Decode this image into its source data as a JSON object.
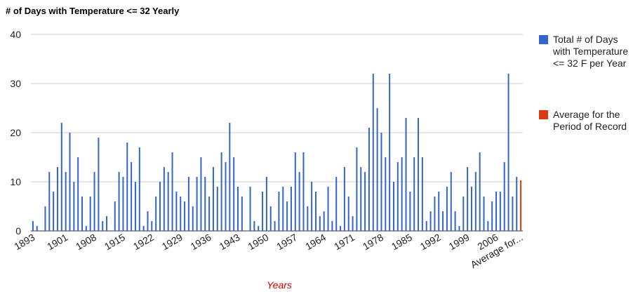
{
  "chart_data": {
    "type": "bar",
    "title": "# of Days with Temperature <= 32 Yearly",
    "x_label": "Years",
    "categories": [
      "1893",
      null,
      null,
      null,
      null,
      null,
      null,
      null,
      "1901",
      null,
      null,
      null,
      null,
      null,
      null,
      "1908",
      null,
      null,
      null,
      null,
      null,
      null,
      "1915",
      null,
      null,
      null,
      null,
      null,
      null,
      "1922",
      null,
      null,
      null,
      null,
      null,
      null,
      "1929",
      null,
      null,
      null,
      null,
      null,
      null,
      "1936",
      null,
      null,
      null,
      null,
      null,
      null,
      "1943",
      null,
      null,
      null,
      null,
      null,
      null,
      "1950",
      null,
      null,
      null,
      null,
      null,
      null,
      "1957",
      null,
      null,
      null,
      null,
      null,
      null,
      "1964",
      null,
      null,
      null,
      null,
      null,
      null,
      "1971",
      null,
      null,
      null,
      null,
      null,
      null,
      "1978",
      null,
      null,
      null,
      null,
      null,
      null,
      "1985",
      null,
      null,
      null,
      null,
      null,
      null,
      "1992",
      null,
      null,
      null,
      null,
      null,
      null,
      "1999",
      null,
      null,
      null,
      null,
      null,
      null,
      "2006",
      null,
      null,
      null,
      null,
      null,
      "Average for..."
    ],
    "series": [
      {
        "name": "Total # of Days with Temperature <= 32 F per Year",
        "color": "#3366cc",
        "values": [
          2,
          1,
          0,
          5,
          12,
          8,
          13,
          22,
          12,
          20,
          10,
          15,
          7,
          1,
          7,
          12,
          19,
          2,
          3,
          0,
          6,
          12,
          11,
          18,
          14,
          10,
          17,
          1,
          4,
          2,
          7,
          10,
          13,
          12,
          16,
          8,
          7,
          6,
          11,
          5,
          11,
          15,
          11,
          7,
          13,
          9,
          16,
          14,
          22,
          15,
          9,
          7,
          0,
          9,
          2,
          1,
          8,
          11,
          5,
          2,
          8,
          9,
          6,
          9,
          16,
          12,
          16,
          5,
          10,
          8,
          3,
          4,
          9,
          2,
          11,
          1,
          13,
          7,
          3,
          17,
          13,
          12,
          21,
          32,
          25,
          20,
          15,
          32,
          10,
          14,
          15,
          23,
          8,
          15,
          23,
          15,
          2,
          4,
          7,
          8,
          4,
          9,
          12,
          4,
          1,
          7,
          13,
          9,
          12,
          16,
          7,
          2,
          6,
          8,
          8,
          14,
          32,
          7,
          11,
          null
        ]
      },
      {
        "name": "Average for the Period of Record",
        "color": "#dc3912",
        "values": [
          null,
          null,
          null,
          null,
          null,
          null,
          null,
          null,
          null,
          null,
          null,
          null,
          null,
          null,
          null,
          null,
          null,
          null,
          null,
          null,
          null,
          null,
          null,
          null,
          null,
          null,
          null,
          null,
          null,
          null,
          null,
          null,
          null,
          null,
          null,
          null,
          null,
          null,
          null,
          null,
          null,
          null,
          null,
          null,
          null,
          null,
          null,
          null,
          null,
          null,
          null,
          null,
          null,
          null,
          null,
          null,
          null,
          null,
          null,
          null,
          null,
          null,
          null,
          null,
          null,
          null,
          null,
          null,
          null,
          null,
          null,
          null,
          null,
          null,
          null,
          null,
          null,
          null,
          null,
          null,
          null,
          null,
          null,
          null,
          null,
          null,
          null,
          null,
          null,
          null,
          null,
          null,
          null,
          null,
          null,
          null,
          null,
          null,
          null,
          null,
          null,
          null,
          null,
          null,
          null,
          null,
          null,
          null,
          null,
          null,
          null,
          null,
          null,
          null,
          null,
          null,
          null,
          null,
          null,
          10.3
        ]
      }
    ],
    "ylim": [
      0,
      40
    ],
    "yticks": [
      0,
      10,
      20,
      30,
      40
    ],
    "grid": true
  }
}
